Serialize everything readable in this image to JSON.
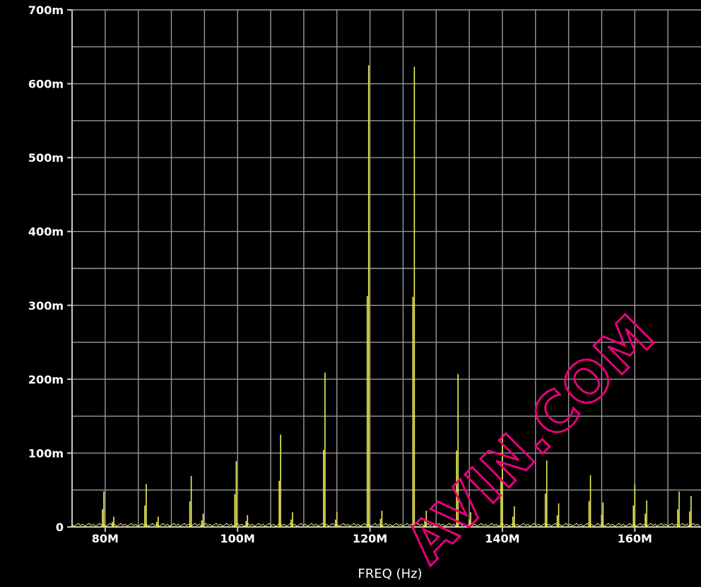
{
  "colors": {
    "background": "#000000",
    "grid": "#9a9a9a",
    "axis": "#c8c8c8",
    "text": "#ffffff",
    "trace": "#f0f05a",
    "watermark": "#e8007a"
  },
  "watermark": {
    "text": "AVIN.COM"
  },
  "chart_data": {
    "type": "line",
    "title": "",
    "xlabel": "FREQ (Hz)",
    "ylabel": "",
    "xlim": [
      75,
      170
    ],
    "ylim": [
      0,
      700
    ],
    "grid": true,
    "xticks": [
      {
        "value": 80,
        "label": "80M"
      },
      {
        "value": 100,
        "label": "100M"
      },
      {
        "value": 120,
        "label": "120M"
      },
      {
        "value": 140,
        "label": "140M"
      },
      {
        "value": 160,
        "label": "160M"
      }
    ],
    "yticks": [
      {
        "value": 0,
        "label": "0"
      },
      {
        "value": 100,
        "label": "100m"
      },
      {
        "value": 200,
        "label": "200m"
      },
      {
        "value": 300,
        "label": "300m"
      },
      {
        "value": 400,
        "label": "400m"
      },
      {
        "value": 500,
        "label": "500m"
      },
      {
        "value": 600,
        "label": "600m"
      },
      {
        "value": 700,
        "label": "700m"
      }
    ],
    "series": [
      {
        "values": [
          {
            "x": 79.8,
            "y": 48
          },
          {
            "x": 81.3,
            "y": 14
          },
          {
            "x": 86.2,
            "y": 58
          },
          {
            "x": 88.0,
            "y": 14
          },
          {
            "x": 93.0,
            "y": 69
          },
          {
            "x": 94.8,
            "y": 18
          },
          {
            "x": 99.8,
            "y": 89
          },
          {
            "x": 101.5,
            "y": 16
          },
          {
            "x": 106.5,
            "y": 125
          },
          {
            "x": 108.3,
            "y": 20
          },
          {
            "x": 113.2,
            "y": 209
          },
          {
            "x": 115.0,
            "y": 20
          },
          {
            "x": 119.8,
            "y": 625
          },
          {
            "x": 121.8,
            "y": 22
          },
          {
            "x": 126.7,
            "y": 623
          },
          {
            "x": 128.5,
            "y": 22
          },
          {
            "x": 133.3,
            "y": 207
          },
          {
            "x": 135.2,
            "y": 20
          },
          {
            "x": 140.0,
            "y": 125
          },
          {
            "x": 141.8,
            "y": 28
          },
          {
            "x": 146.7,
            "y": 90
          },
          {
            "x": 148.5,
            "y": 32
          },
          {
            "x": 153.3,
            "y": 70
          },
          {
            "x": 155.2,
            "y": 33
          },
          {
            "x": 160.0,
            "y": 58
          },
          {
            "x": 161.8,
            "y": 36
          },
          {
            "x": 166.7,
            "y": 48
          },
          {
            "x": 168.5,
            "y": 42
          }
        ]
      }
    ]
  }
}
